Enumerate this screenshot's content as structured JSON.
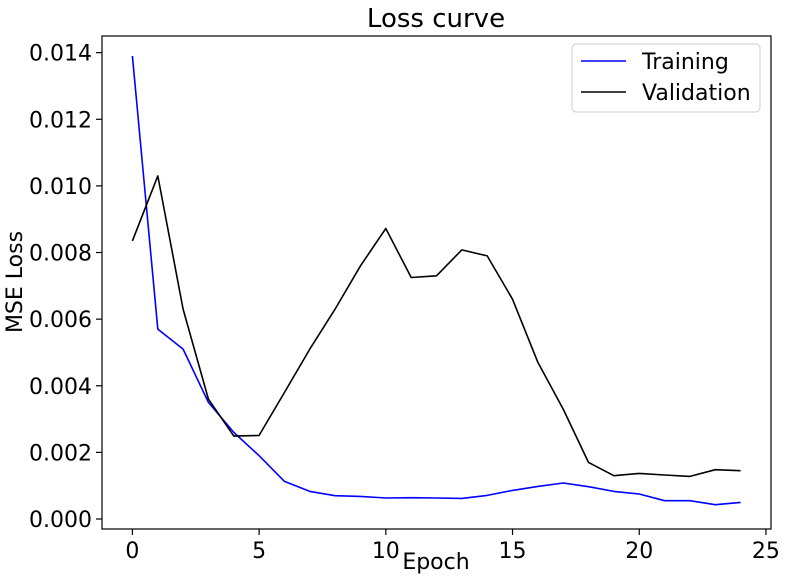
{
  "chart_data": {
    "type": "line",
    "title": "Loss curve",
    "xlabel": "Epoch",
    "ylabel": "MSE Loss",
    "xlim": [
      -1.2,
      25.2
    ],
    "ylim": [
      -0.0003,
      0.0145
    ],
    "xticks": [
      0,
      5,
      10,
      15,
      20,
      25
    ],
    "xtick_labels": [
      "0",
      "5",
      "10",
      "15",
      "20",
      "25"
    ],
    "yticks": [
      0.0,
      0.002,
      0.004,
      0.006,
      0.008,
      0.01,
      0.012,
      0.014
    ],
    "ytick_labels": [
      "0.000",
      "0.002",
      "0.004",
      "0.006",
      "0.008",
      "0.010",
      "0.012",
      "0.014"
    ],
    "grid": false,
    "legend_position": "top-right",
    "x": [
      0,
      1,
      2,
      3,
      4,
      5,
      6,
      7,
      8,
      9,
      10,
      11,
      12,
      13,
      14,
      15,
      16,
      17,
      18,
      19,
      20,
      21,
      22,
      23,
      24
    ],
    "series": [
      {
        "name": "Training",
        "color": "#0000ff",
        "values": [
          0.0139,
          0.0057,
          0.0051,
          0.0035,
          0.0026,
          0.0019,
          0.00113,
          0.00083,
          0.0007,
          0.00068,
          0.00063,
          0.00064,
          0.00063,
          0.00062,
          0.00071,
          0.00086,
          0.00098,
          0.00108,
          0.00097,
          0.00083,
          0.00075,
          0.00055,
          0.00055,
          0.00043,
          0.0005
        ]
      },
      {
        "name": "Validation",
        "color": "#000000",
        "values": [
          0.00835,
          0.0103,
          0.0063,
          0.0036,
          0.00249,
          0.00251,
          0.0038,
          0.0051,
          0.0063,
          0.0076,
          0.00872,
          0.00725,
          0.0073,
          0.00808,
          0.0079,
          0.0066,
          0.0047,
          0.0033,
          0.0017,
          0.0013,
          0.00137,
          0.00132,
          0.00128,
          0.00148,
          0.00145
        ]
      }
    ]
  }
}
